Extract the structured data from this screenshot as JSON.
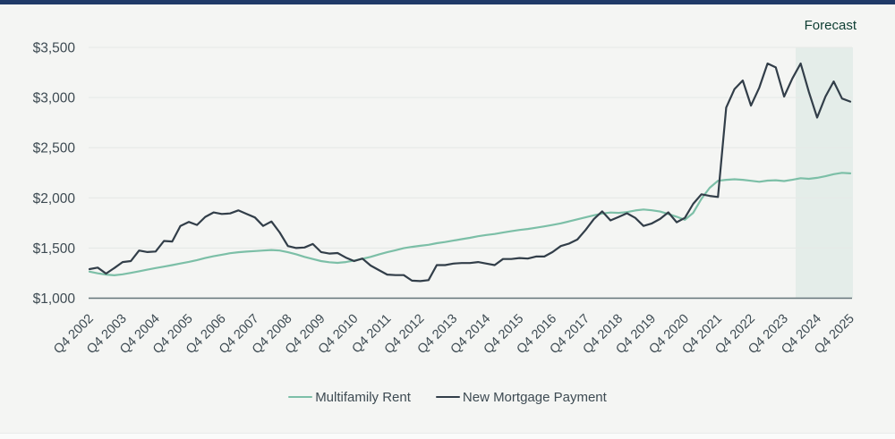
{
  "page": {
    "background_color": "#f4f5f3",
    "top_bar_color": "#1f3a68"
  },
  "chart_data": {
    "type": "line",
    "x_tick_labels": [
      "Q4 2002",
      "Q4 2003",
      "Q4 2004",
      "Q4 2005",
      "Q4 2006",
      "Q4 2007",
      "Q4 2008",
      "Q4 2009",
      "Q4 2010",
      "Q4 2011",
      "Q4 2012",
      "Q4 2013",
      "Q4 2014",
      "Q4 2015",
      "Q4 2016",
      "Q4 2017",
      "Q4 2018",
      "Q4 2019",
      "Q4 2020",
      "Q4 2021",
      "Q4 2022",
      "Q4 2023",
      "Q4 2024",
      "Q4 2025"
    ],
    "points_per_tick": 4,
    "x_frequency": "quarterly",
    "ylim": [
      1000,
      3500
    ],
    "y_tick_step": 500,
    "y_tick_labels": [
      "$1,000",
      "$1,500",
      "$2,000",
      "$2,500",
      "$3,000",
      "$3,500"
    ],
    "grid": "horizontal",
    "legend_position": "bottom",
    "forecast": {
      "label": "Forecast",
      "label_color": "#0e3e33",
      "band_color": "#e4ede9",
      "start_index": 85.4
    },
    "series": [
      {
        "name": "Multifamily Rent",
        "color": "#7cbfa7",
        "values": [
          1265,
          1248,
          1235,
          1228,
          1238,
          1252,
          1268,
          1284,
          1300,
          1315,
          1330,
          1346,
          1362,
          1380,
          1400,
          1418,
          1433,
          1448,
          1458,
          1464,
          1470,
          1475,
          1480,
          1475,
          1458,
          1438,
          1412,
          1390,
          1370,
          1358,
          1352,
          1360,
          1375,
          1392,
          1412,
          1436,
          1458,
          1478,
          1498,
          1512,
          1522,
          1532,
          1548,
          1560,
          1574,
          1588,
          1602,
          1618,
          1630,
          1640,
          1654,
          1668,
          1680,
          1690,
          1702,
          1716,
          1730,
          1746,
          1766,
          1786,
          1806,
          1826,
          1844,
          1854,
          1850,
          1858,
          1874,
          1884,
          1876,
          1864,
          1840,
          1812,
          1782,
          1850,
          1990,
          2100,
          2170,
          2180,
          2185,
          2180,
          2170,
          2160,
          2172,
          2176,
          2168,
          2180,
          2196,
          2190,
          2200,
          2216,
          2236,
          2250,
          2244
        ]
      },
      {
        "name": "New Mortgage Payment",
        "color": "#323e49",
        "values": [
          1290,
          1305,
          1245,
          1300,
          1360,
          1370,
          1475,
          1460,
          1465,
          1570,
          1565,
          1720,
          1760,
          1730,
          1810,
          1855,
          1840,
          1845,
          1875,
          1840,
          1805,
          1720,
          1765,
          1655,
          1520,
          1500,
          1505,
          1540,
          1460,
          1445,
          1450,
          1405,
          1370,
          1395,
          1325,
          1280,
          1235,
          1230,
          1230,
          1175,
          1170,
          1180,
          1330,
          1330,
          1345,
          1350,
          1350,
          1360,
          1345,
          1330,
          1390,
          1390,
          1400,
          1395,
          1415,
          1415,
          1460,
          1520,
          1545,
          1585,
          1680,
          1790,
          1865,
          1775,
          1810,
          1847,
          1800,
          1720,
          1745,
          1790,
          1856,
          1757,
          1800,
          1940,
          2036,
          2020,
          2009,
          2900,
          3085,
          3170,
          2920,
          3100,
          3340,
          3300,
          3010,
          3190,
          3340,
          3055,
          2800,
          3010,
          3160,
          2990,
          2960
        ]
      }
    ],
    "style": {
      "gridline_color": "#e6e9e7",
      "axis_line_color": "#64757a",
      "tick_label_color": "#3d4a52"
    }
  },
  "legend": {
    "items": [
      {
        "label": "Multifamily Rent",
        "color": "#7cbfa7"
      },
      {
        "label": "New Mortgage Payment",
        "color": "#323e49"
      }
    ]
  }
}
